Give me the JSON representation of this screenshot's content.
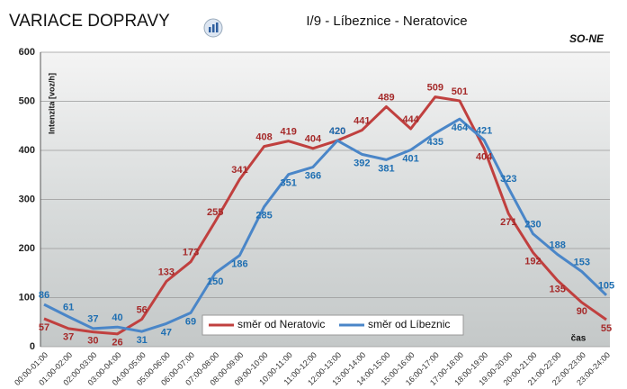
{
  "chart_data": {
    "type": "line",
    "title": "VARIACE DOPRAVY",
    "subtitle": "I/9 - Líbeznice - Neratovice",
    "annotation": "SO-NE",
    "y_label": "Intenzita [voz/h]",
    "x_label": "čas",
    "categories": [
      "00:00-01:00",
      "01:00-02:00",
      "02:00-03:00",
      "03:00-04:00",
      "04:00-05:00",
      "05:00-06:00",
      "06:00-07:00",
      "07:00-08:00",
      "08:00-09:00",
      "09:00-10:00",
      "10:00-11:00",
      "11:00-12:00",
      "12:00-13:00",
      "13:00-14:00",
      "14:00-15:00",
      "15:00-16:00",
      "16:00-17:00",
      "17:00-18:00",
      "18:00-19:00",
      "19:00-20:00",
      "20:00-21:00",
      "21:00-22:00",
      "22:00-23:00",
      "23:00-24:00"
    ],
    "series": [
      {
        "name": "směr od Neratovic",
        "color": "#c0403f",
        "label_color": "#a52a2a",
        "values": [
          57,
          37,
          30,
          26,
          56,
          133,
          173,
          255,
          341,
          408,
          419,
          404,
          420,
          441,
          489,
          444,
          509,
          501,
          404,
          271,
          192,
          135,
          90,
          55
        ]
      },
      {
        "name": "směr od Líbeznic",
        "color": "#4a86c8",
        "label_color": "#1f6fb2",
        "values": [
          86,
          61,
          37,
          40,
          31,
          47,
          69,
          150,
          186,
          285,
          351,
          366,
          420,
          392,
          381,
          401,
          435,
          464,
          421,
          323,
          230,
          188,
          153,
          105
        ]
      }
    ],
    "ylim": [
      0,
      600
    ],
    "yticks": [
      0,
      100,
      200,
      300,
      400,
      500,
      600
    ],
    "grid": true
  }
}
